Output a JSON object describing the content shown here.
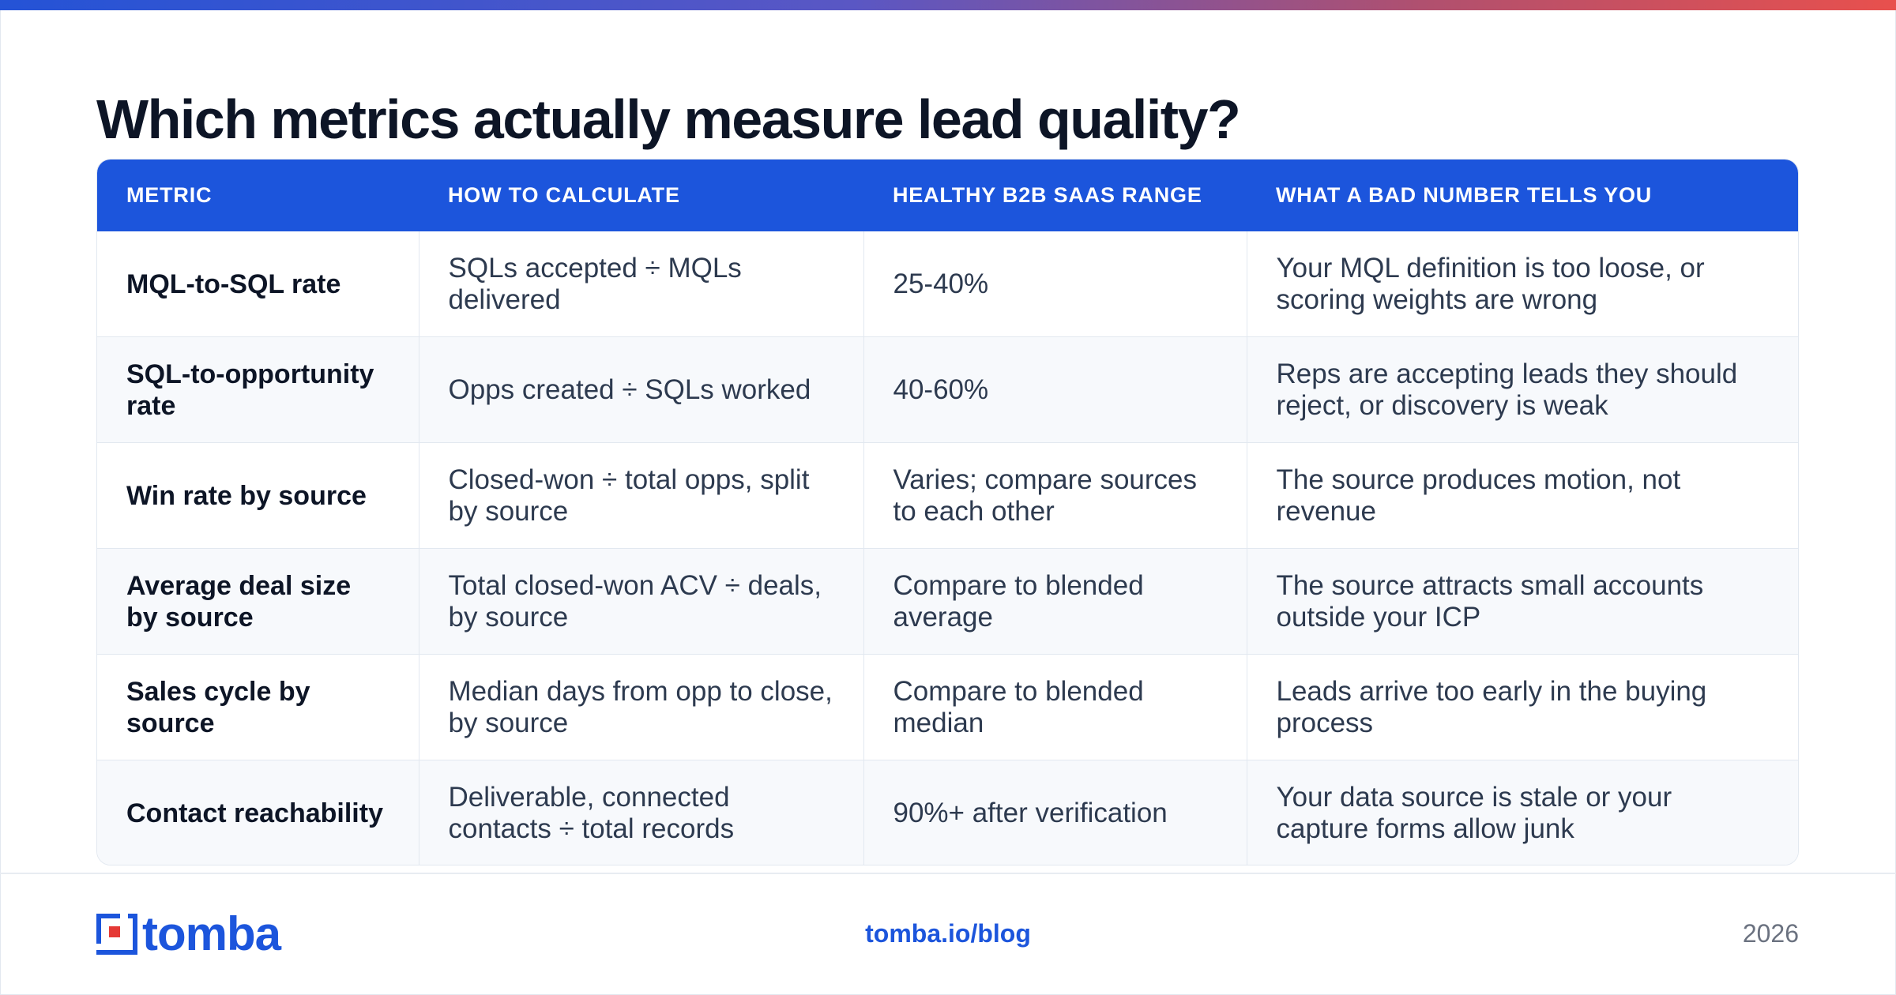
{
  "title": "Which metrics actually measure lead quality?",
  "table": {
    "headers": [
      "METRIC",
      "HOW TO CALCULATE",
      "HEALTHY B2B SAAS RANGE",
      "WHAT A BAD NUMBER TELLS YOU"
    ],
    "rows": [
      [
        "MQL-to-SQL rate",
        "SQLs accepted ÷ MQLs delivered",
        "25-40%",
        "Your MQL definition is too loose, or scoring weights are wrong"
      ],
      [
        "SQL-to-opportunity rate",
        "Opps created ÷ SQLs worked",
        "40-60%",
        "Reps are accepting leads they should reject, or discovery is weak"
      ],
      [
        "Win rate by source",
        "Closed-won ÷ total opps, split by source",
        "Varies; compare sources to each other",
        "The source produces motion, not revenue"
      ],
      [
        "Average deal size by source",
        "Total closed-won ACV ÷ deals, by source",
        "Compare to blended average",
        "The source attracts small accounts outside your ICP"
      ],
      [
        "Sales cycle by source",
        "Median days from opp to close, by source",
        "Compare to blended median",
        "Leads arrive too early in the buying process"
      ],
      [
        "Contact reachability",
        "Deliverable, connected contacts ÷ total records",
        "90%+ after verification",
        "Your data source is stale or your capture forms allow junk"
      ]
    ]
  },
  "footer": {
    "logo_text": "tomba",
    "link": "tomba.io/blog",
    "year": "2026"
  },
  "colors": {
    "accent": "#1c55dc",
    "logo_red": "#e53935"
  }
}
